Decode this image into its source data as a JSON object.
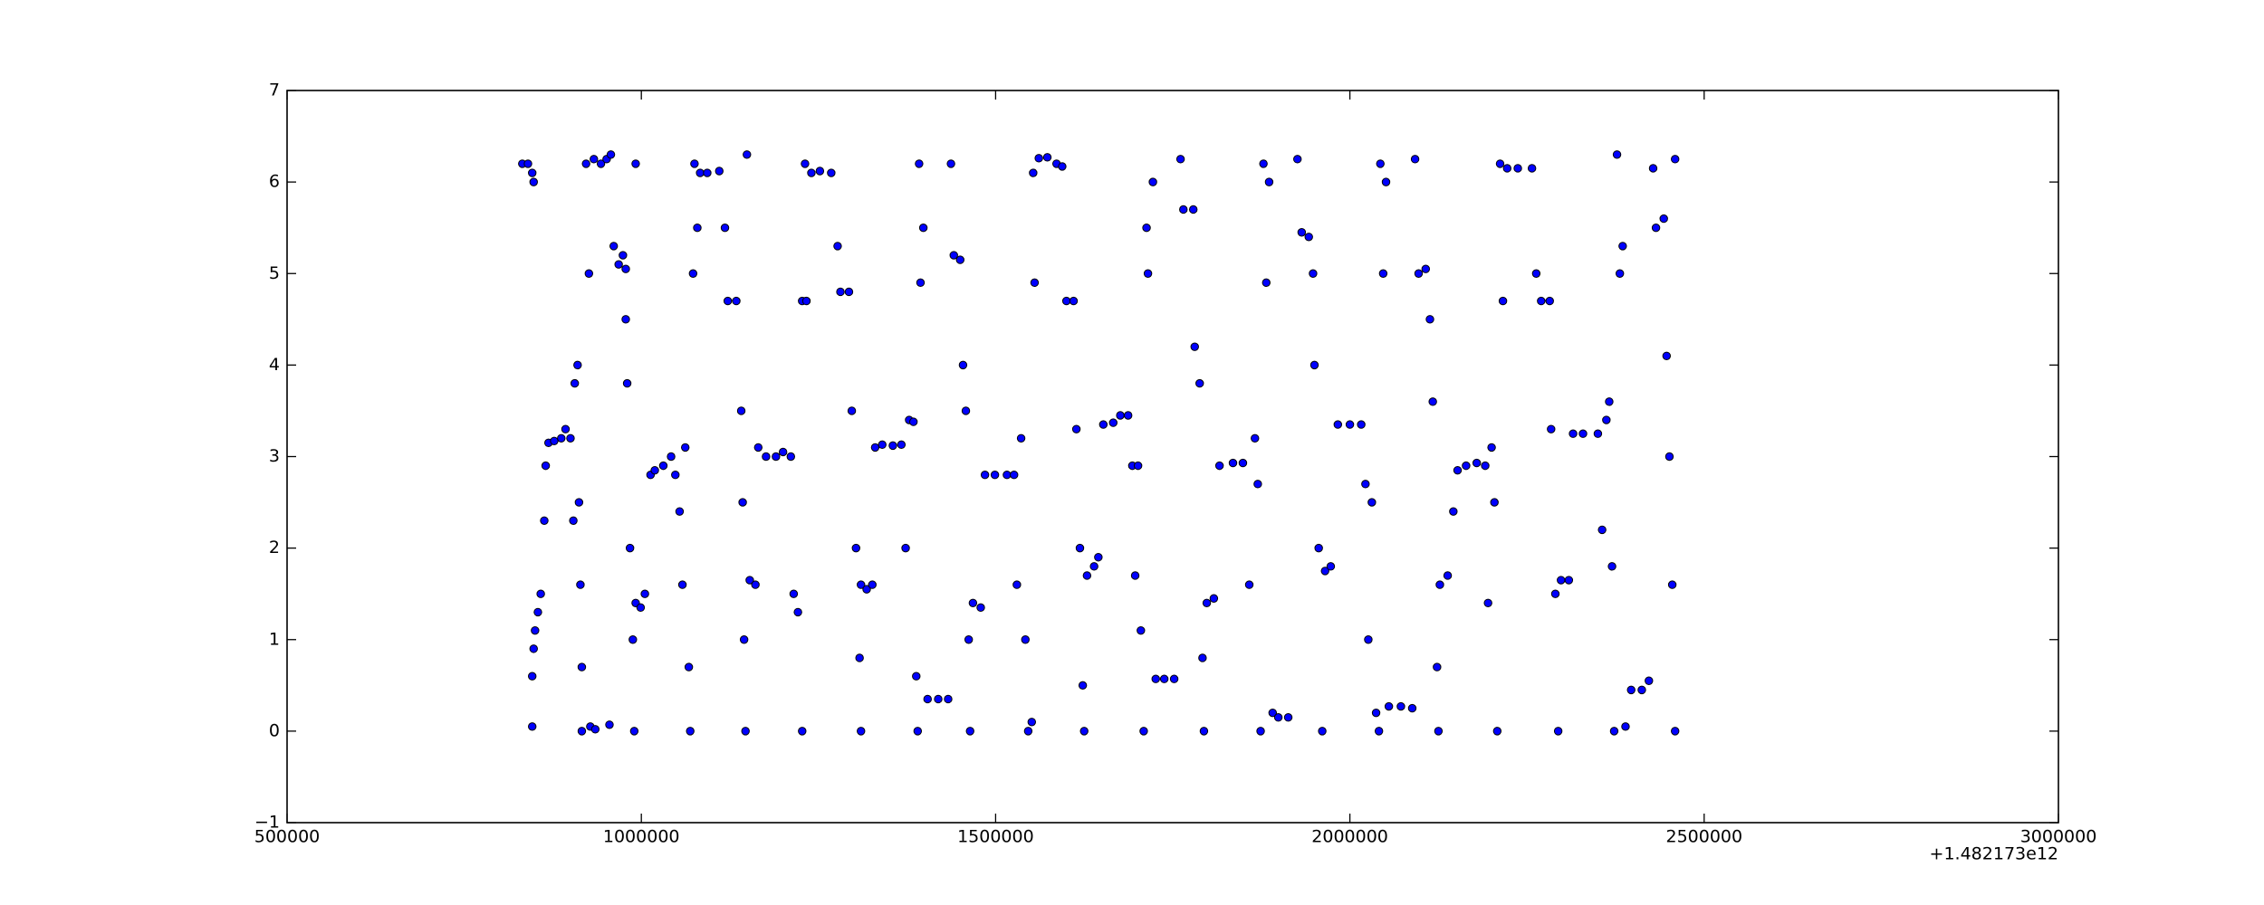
{
  "chart_data": {
    "type": "scatter",
    "x_offset_label": "+1.482173e12",
    "color": "#0000ff",
    "edge_color": "#000000",
    "grid": false,
    "xlim": [
      500000,
      3000000
    ],
    "xticks": [
      500000,
      1000000,
      1500000,
      2000000,
      2500000,
      3000000
    ],
    "ylim": [
      -1,
      7
    ],
    "yticks": [
      {
        "value": -1,
        "label": "−1"
      },
      0,
      1,
      2,
      3,
      4,
      5,
      6,
      7
    ],
    "x": [
      832000,
      840000,
      846000,
      848000,
      846000,
      846000,
      848000,
      850000,
      854000,
      858000,
      863000,
      865000,
      869000,
      877000,
      887000,
      893000,
      900000,
      904000,
      906000,
      910000,
      912000,
      914000,
      916000,
      916000,
      928000,
      935000,
      922000,
      926000,
      933000,
      943000,
      951000,
      957000,
      955000,
      961000,
      968000,
      974000,
      978000,
      978000,
      980000,
      984000,
      988000,
      990000,
      992000,
      992000,
      999000,
      1005000,
      1013000,
      1019000,
      1031000,
      1042000,
      1048000,
      1054000,
      1058000,
      1062000,
      1067000,
      1069000,
      1073000,
      1075000,
      1079000,
      1083000,
      1093000,
      1110000,
      1118000,
      1122000,
      1134000,
      1141000,
      1143000,
      1145000,
      1147000,
      1149000,
      1153000,
      1161000,
      1165000,
      1176000,
      1190000,
      1200000,
      1211000,
      1215000,
      1221000,
      1227000,
      1227000,
      1231000,
      1233000,
      1240000,
      1252000,
      1268000,
      1277000,
      1281000,
      1293000,
      1297000,
      1303000,
      1308000,
      1310000,
      1310000,
      1318000,
      1326000,
      1330000,
      1340000,
      1355000,
      1367000,
      1373000,
      1378000,
      1384000,
      1388000,
      1390000,
      1392000,
      1394000,
      1398000,
      1404000,
      1419000,
      1433000,
      1437000,
      1441000,
      1450000,
      1454000,
      1458000,
      1462000,
      1464000,
      1468000,
      1479000,
      1485000,
      1499000,
      1516000,
      1526000,
      1530000,
      1536000,
      1542000,
      1546000,
      1551000,
      1555000,
      1553000,
      1561000,
      1573000,
      1586000,
      1594000,
      1600000,
      1610000,
      1614000,
      1619000,
      1623000,
      1625000,
      1629000,
      1639000,
      1645000,
      1652000,
      1666000,
      1676000,
      1687000,
      1693000,
      1697000,
      1701000,
      1705000,
      1709000,
      1713000,
      1715000,
      1722000,
      1726000,
      1738000,
      1752000,
      1761000,
      1765000,
      1779000,
      1781000,
      1788000,
      1792000,
      1794000,
      1798000,
      1808000,
      1816000,
      1835000,
      1849000,
      1858000,
      1866000,
      1870000,
      1874000,
      1878000,
      1882000,
      1886000,
      1891000,
      1899000,
      1913000,
      1926000,
      1932000,
      1942000,
      1948000,
      1950000,
      1956000,
      1961000,
      1965000,
      1973000,
      1983000,
      2000000,
      2016000,
      2022000,
      2026000,
      2031000,
      2037000,
      2041000,
      2043000,
      2047000,
      2051000,
      2055000,
      2072000,
      2088000,
      2092000,
      2097000,
      2107000,
      2113000,
      2117000,
      2123000,
      2125000,
      2127000,
      2138000,
      2146000,
      2152000,
      2164000,
      2179000,
      2191000,
      2195000,
      2200000,
      2204000,
      2208000,
      2212000,
      2216000,
      2222000,
      2237000,
      2257000,
      2263000,
      2270000,
      2282000,
      2284000,
      2290000,
      2294000,
      2298000,
      2309000,
      2315000,
      2329000,
      2350000,
      2356000,
      2362000,
      2366000,
      2370000,
      2373000,
      2377000,
      2381000,
      2385000,
      2389000,
      2397000,
      2412000,
      2422000,
      2428000,
      2432000,
      2443000,
      2447000,
      2451000,
      2455000,
      2459000,
      2459000
    ],
    "values": [
      6.2,
      6.2,
      6.1,
      6.0,
      0.05,
      0.6,
      0.9,
      1.1,
      1.3,
      1.5,
      2.3,
      2.9,
      3.15,
      3.17,
      3.2,
      3.3,
      3.2,
      2.3,
      3.8,
      4.0,
      2.5,
      1.6,
      0.7,
      0.0,
      0.05,
      0.02,
      6.2,
      5.0,
      6.25,
      6.2,
      6.25,
      6.3,
      0.07,
      5.3,
      5.1,
      5.2,
      5.05,
      4.5,
      3.8,
      2.0,
      1.0,
      0.0,
      6.2,
      1.4,
      1.35,
      1.5,
      2.8,
      2.85,
      2.9,
      3.0,
      2.8,
      2.4,
      1.6,
      3.1,
      0.7,
      0.0,
      5.0,
      6.2,
      5.5,
      6.1,
      6.1,
      6.12,
      5.5,
      4.7,
      4.7,
      3.5,
      2.5,
      1.0,
      0.0,
      6.3,
      1.65,
      1.6,
      3.1,
      3.0,
      3.0,
      3.05,
      3.0,
      1.5,
      1.3,
      0.0,
      4.7,
      6.2,
      4.7,
      6.1,
      6.12,
      6.1,
      5.3,
      4.8,
      4.8,
      3.5,
      2.0,
      0.8,
      0.0,
      1.6,
      1.55,
      1.6,
      3.1,
      3.13,
      3.12,
      3.13,
      2.0,
      3.4,
      3.38,
      0.6,
      0.0,
      6.2,
      4.9,
      5.5,
      0.35,
      0.35,
      0.35,
      6.2,
      5.2,
      5.15,
      4.0,
      3.5,
      1.0,
      0.0,
      1.4,
      1.35,
      2.8,
      2.8,
      2.8,
      2.8,
      1.6,
      3.2,
      1.0,
      0.0,
      0.1,
      4.9,
      6.1,
      6.26,
      6.27,
      6.2,
      6.17,
      4.7,
      4.7,
      3.3,
      2.0,
      0.5,
      0.0,
      1.7,
      1.8,
      1.9,
      3.35,
      3.37,
      3.45,
      3.45,
      2.9,
      1.7,
      2.9,
      1.1,
      0.0,
      5.5,
      5.0,
      6.0,
      0.57,
      0.57,
      0.57,
      6.25,
      5.7,
      5.7,
      4.2,
      3.8,
      0.8,
      0.0,
      1.4,
      1.45,
      2.9,
      2.93,
      2.93,
      1.6,
      3.2,
      2.7,
      0.0,
      6.2,
      4.9,
      6.0,
      0.2,
      0.15,
      0.15,
      6.25,
      5.45,
      5.4,
      5.0,
      4.0,
      2.0,
      0.0,
      1.75,
      1.8,
      3.35,
      3.35,
      3.35,
      2.7,
      1.0,
      2.5,
      0.2,
      0.0,
      6.2,
      5.0,
      6.0,
      0.27,
      0.27,
      0.25,
      6.25,
      5.0,
      5.05,
      4.5,
      3.6,
      0.7,
      0.0,
      1.6,
      1.7,
      2.4,
      2.85,
      2.9,
      2.93,
      2.9,
      1.4,
      3.1,
      2.5,
      0.0,
      6.2,
      4.7,
      6.15,
      6.15,
      6.15,
      5.0,
      4.7,
      4.7,
      3.3,
      1.5,
      0.0,
      1.65,
      1.65,
      3.25,
      3.25,
      3.25,
      2.2,
      3.4,
      3.6,
      1.8,
      0.0,
      6.3,
      5.0,
      5.3,
      0.05,
      0.45,
      0.45,
      0.55,
      6.15,
      5.5,
      5.6,
      4.1,
      3.0,
      1.6,
      0.0,
      6.25
    ]
  }
}
